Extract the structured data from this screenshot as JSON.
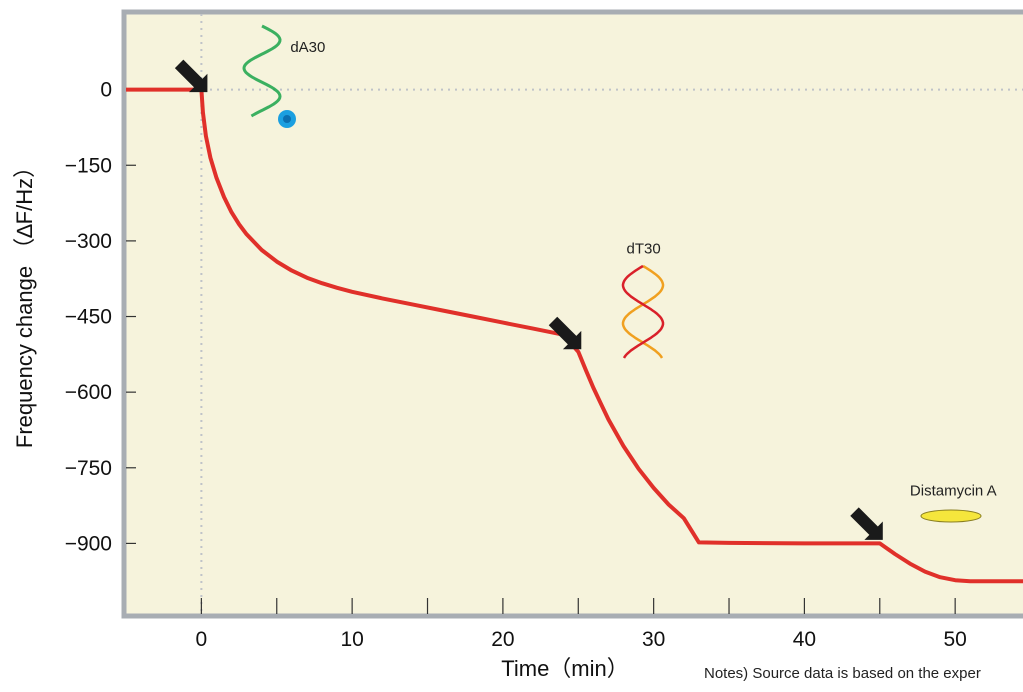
{
  "chart_data": {
    "type": "line",
    "xlabel": "Time（min）",
    "ylabel": "Frequency change （∆F/Hz）",
    "x_ticks": [
      0,
      10,
      20,
      30,
      40,
      50
    ],
    "y_ticks": [
      0,
      -150,
      -300,
      -450,
      -600,
      -750,
      -900
    ],
    "y_tick_labels": [
      "0",
      "−150",
      "−300",
      "−450",
      "−600",
      "−750",
      "−900"
    ],
    "xlim": [
      -5,
      54.5
    ],
    "ylim": [
      -1040,
      150
    ],
    "grid": false,
    "series": [
      {
        "color": "#e0302a",
        "x": [
          -5,
          0,
          0.1,
          0.3,
          0.6,
          1,
          1.5,
          2,
          2.5,
          3,
          4,
          5,
          6,
          7,
          8,
          9,
          10,
          12,
          14,
          16,
          18,
          20,
          22,
          24,
          25,
          25.5,
          26,
          26.5,
          27,
          28,
          29,
          30,
          31,
          32,
          33,
          35,
          40,
          45,
          46,
          47,
          48,
          49,
          50,
          51,
          52,
          54.5
        ],
        "y": [
          0,
          0,
          -45,
          -92,
          -135,
          -175,
          -213,
          -243,
          -267,
          -287,
          -318,
          -341,
          -359,
          -373,
          -384,
          -393,
          -401,
          -414,
          -426,
          -438,
          -450,
          -462,
          -474,
          -486,
          -520,
          -556,
          -591,
          -623,
          -654,
          -707,
          -752,
          -790,
          -823,
          -850,
          -898,
          -899,
          -900,
          -900,
          -921,
          -940,
          -956,
          -967,
          -973,
          -975,
          -975,
          -975
        ]
      }
    ],
    "annotations": [
      {
        "text": "dA30",
        "x": 5.9,
        "y": 75,
        "arrow_x": 0.4,
        "arrow_y": -5
      },
      {
        "text": "dT30",
        "x": 28.2,
        "y": -325,
        "arrow_x": 25.2,
        "arrow_y": -515
      },
      {
        "text": "Distamycin A",
        "x": 47,
        "y": -805,
        "arrow_x": 45.2,
        "arrow_y": -893
      }
    ],
    "baseline_y": 0,
    "marker_x": 0,
    "colors": {
      "plot_background": "#f6f3dc",
      "frame": "#a8adb3",
      "line": "#e0302a",
      "arrow": "#1a1a1a",
      "dA30_strand": "#1aa34a",
      "dA30_bead": "#1b9fe0",
      "dT30_strand_red": "#d9202a",
      "dT30_strand_orange": "#f0a020",
      "distamycin_fill": "#f5e63c"
    }
  },
  "note": "Notes) Source data is based on the exper"
}
